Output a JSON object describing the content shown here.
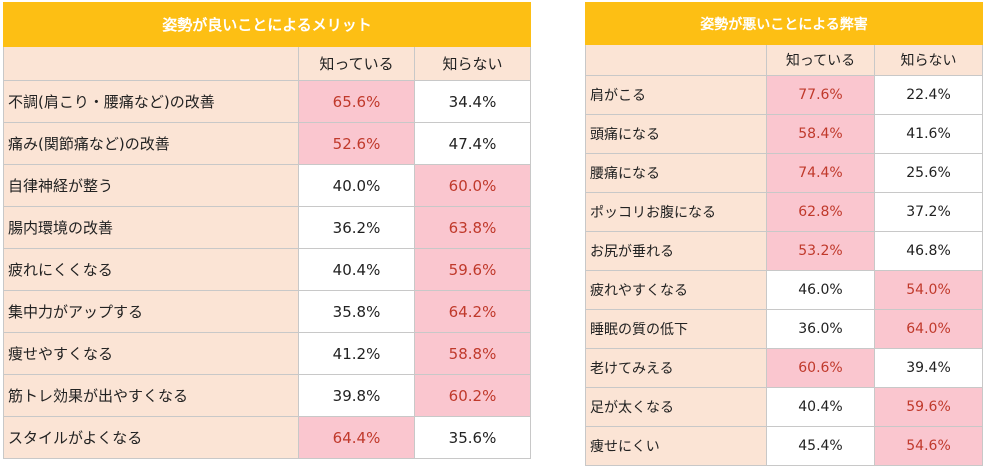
{
  "chart_data": [
    {
      "type": "table",
      "title": "姿勢が良いことによるメリット",
      "columns": [
        "知っている",
        "知らない"
      ],
      "rows": [
        {
          "label": "不調(肩こり・腰痛など)の改善",
          "know": "65.6%",
          "dont_know": "34.4%",
          "highlight": "know"
        },
        {
          "label": "痛み(関節痛など)の改善",
          "know": "52.6%",
          "dont_know": "47.4%",
          "highlight": "know"
        },
        {
          "label": "自律神経が整う",
          "know": "40.0%",
          "dont_know": "60.0%",
          "highlight": "dont_know"
        },
        {
          "label": "腸内環境の改善",
          "know": "36.2%",
          "dont_know": "63.8%",
          "highlight": "dont_know"
        },
        {
          "label": "疲れにくくなる",
          "know": "40.4%",
          "dont_know": "59.6%",
          "highlight": "dont_know"
        },
        {
          "label": "集中力がアップする",
          "know": "35.8%",
          "dont_know": "64.2%",
          "highlight": "dont_know"
        },
        {
          "label": "痩せやすくなる",
          "know": "41.2%",
          "dont_know": "58.8%",
          "highlight": "dont_know"
        },
        {
          "label": "筋トレ効果が出やすくなる",
          "know": "39.8%",
          "dont_know": "60.2%",
          "highlight": "dont_know"
        },
        {
          "label": "スタイルがよくなる",
          "know": "64.4%",
          "dont_know": "35.6%",
          "highlight": "know"
        }
      ]
    },
    {
      "type": "table",
      "title": "姿勢が悪いことによる弊害",
      "columns": [
        "知っている",
        "知らない"
      ],
      "rows": [
        {
          "label": "肩がこる",
          "know": "77.6%",
          "dont_know": "22.4%",
          "highlight": "know"
        },
        {
          "label": "頭痛になる",
          "know": "58.4%",
          "dont_know": "41.6%",
          "highlight": "know"
        },
        {
          "label": "腰痛になる",
          "know": "74.4%",
          "dont_know": "25.6%",
          "highlight": "know"
        },
        {
          "label": "ポッコリお腹になる",
          "know": "62.8%",
          "dont_know": "37.2%",
          "highlight": "know"
        },
        {
          "label": "お尻が垂れる",
          "know": "53.2%",
          "dont_know": "46.8%",
          "highlight": "know"
        },
        {
          "label": "疲れやすくなる",
          "know": "46.0%",
          "dont_know": "54.0%",
          "highlight": "dont_know"
        },
        {
          "label": "睡眠の質の低下",
          "know": "36.0%",
          "dont_know": "64.0%",
          "highlight": "dont_know"
        },
        {
          "label": "老けてみえる",
          "know": "60.6%",
          "dont_know": "39.4%",
          "highlight": "know"
        },
        {
          "label": "足が太くなる",
          "know": "40.4%",
          "dont_know": "59.6%",
          "highlight": "dont_know"
        },
        {
          "label": "痩せにくい",
          "know": "45.4%",
          "dont_know": "54.6%",
          "highlight": "dont_know"
        }
      ]
    }
  ]
}
